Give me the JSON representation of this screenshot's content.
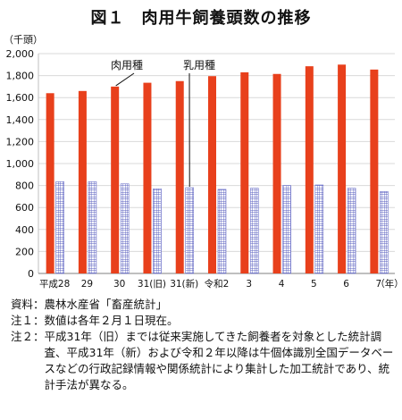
{
  "title": "図１　肉用牛飼養頭数の推移",
  "chart_data": {
    "type": "bar",
    "ylabel": "（千頭）",
    "xunit": "（年）",
    "ylim": [
      0,
      2000
    ],
    "yticks": [
      0,
      200,
      400,
      600,
      800,
      1000,
      1200,
      1400,
      1600,
      1800,
      2000
    ],
    "ytick_labels": [
      "0",
      "200",
      "400",
      "600",
      "800",
      "1,000",
      "1,200",
      "1,400",
      "1,600",
      "1,800",
      "2,000"
    ],
    "categories": [
      "平成28",
      "29",
      "30",
      "31(旧)",
      "31(新)",
      "令和2",
      "3",
      "4",
      "5",
      "6",
      "7"
    ],
    "series": [
      {
        "name": "肉用種",
        "color": "#e8401c",
        "pattern": "solid",
        "values": [
          1640,
          1660,
          1700,
          1735,
          1750,
          1795,
          1830,
          1815,
          1885,
          1900,
          1855
        ]
      },
      {
        "name": "乳用種",
        "color": "#6a6fc8",
        "pattern": "grid",
        "values": [
          835,
          835,
          815,
          770,
          780,
          765,
          775,
          800,
          805,
          775,
          745
        ]
      }
    ],
    "grid": true,
    "legend": "callout labels"
  },
  "notes": [
    {
      "label": "資料：",
      "text": "農林水産省「畜産統計」"
    },
    {
      "label": "注１：",
      "text": "数値は各年２月１日現在。"
    },
    {
      "label": "注２：",
      "text": "平成31年（旧）までは従来実施してきた飼養者を対象とした統計調査、平成31年（新）および令和２年以降は牛個体識別全国データベースなどの行政記録情報や関係統計により集計した加工統計であり、統計手法が異なる。"
    }
  ]
}
